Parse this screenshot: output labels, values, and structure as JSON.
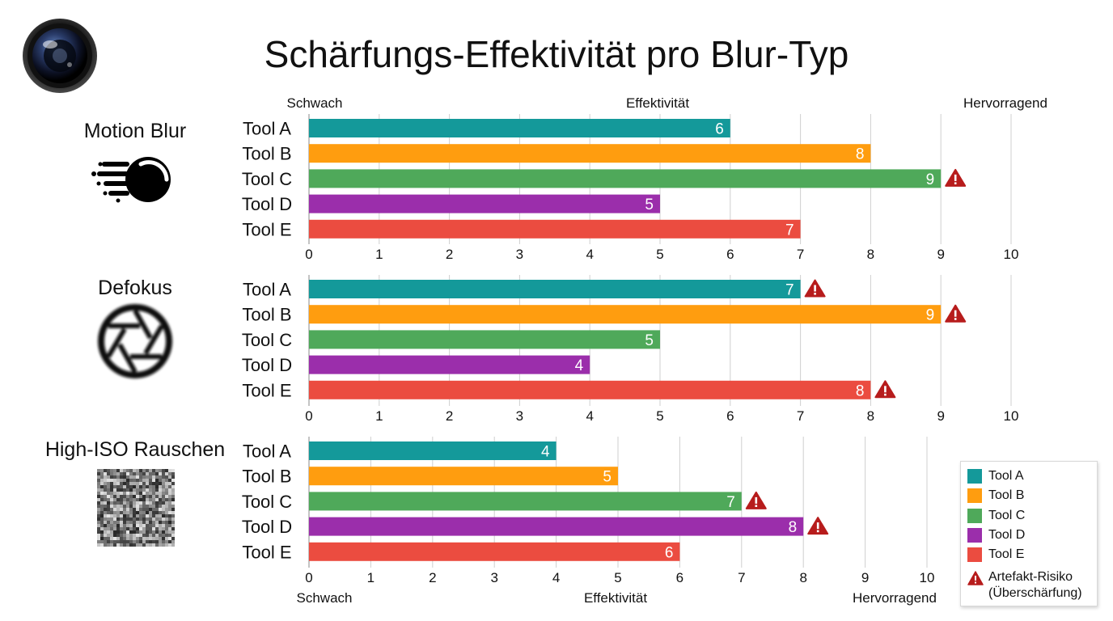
{
  "page": {
    "title": "Schärfungs-Effektivität pro Blur-Typ"
  },
  "icons": {
    "logo": "camera-lens-icon",
    "motion": "motion-blur-icon",
    "defocus": "aperture-icon",
    "noise": "noise-pattern-icon",
    "risk": "warning-triangle-icon"
  },
  "colors": {
    "Tool A": "#14999a",
    "Tool B": "#ff9d0f",
    "Tool C": "#4fa95a",
    "Tool D": "#9b2eab",
    "Tool E": "#eb4c40",
    "risk": "#b71c1c"
  },
  "axis_labels": {
    "top": {
      "left": "Schwach",
      "center": "Effektivität",
      "right": "Hervorragend"
    },
    "bottom": {
      "left": "Schwach",
      "center": "Effektivität",
      "right": "Hervorragend"
    }
  },
  "legend": {
    "items": [
      "Tool A",
      "Tool B",
      "Tool C",
      "Tool D",
      "Tool E"
    ],
    "risk_line1": "Artefakt-Risiko",
    "risk_line2": "(Überschärfung)"
  },
  "chart_data": {
    "type": "bar",
    "orientation": "horizontal",
    "title": "Schärfungs-Effektivität pro Blur-Typ",
    "xlabel": "Effektivität",
    "xlim": [
      0,
      10
    ],
    "ticks": [
      0,
      1,
      2,
      3,
      4,
      5,
      6,
      7,
      8,
      9,
      10
    ],
    "grid": true,
    "legend_position": "bottom-right",
    "categories": [
      "Tool A",
      "Tool B",
      "Tool C",
      "Tool D",
      "Tool E"
    ],
    "panels": [
      {
        "name": "Motion Blur",
        "values": [
          6,
          8,
          9,
          5,
          7
        ],
        "artifact_risk": [
          false,
          false,
          true,
          false,
          false
        ]
      },
      {
        "name": "Defokus",
        "values": [
          7,
          9,
          5,
          4,
          8
        ],
        "artifact_risk": [
          true,
          true,
          false,
          false,
          true
        ]
      },
      {
        "name": "High-ISO Rauschen",
        "values": [
          4,
          5,
          7,
          8,
          6
        ],
        "artifact_risk": [
          false,
          false,
          true,
          true,
          false
        ]
      }
    ]
  }
}
